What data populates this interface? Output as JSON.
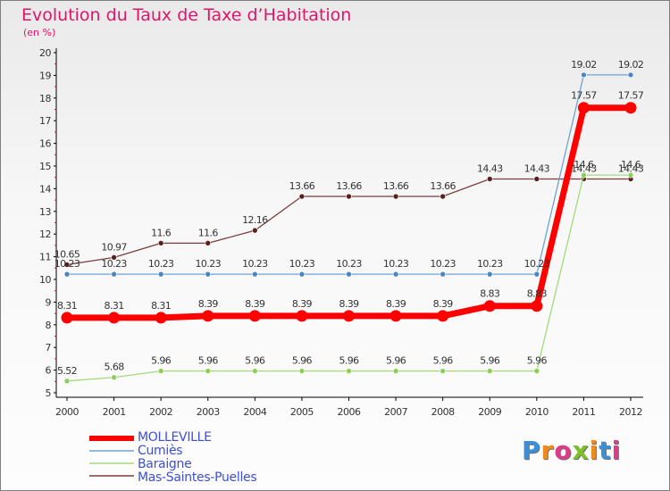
{
  "header": {
    "title": "Evolution du Taux de Taxe d’Habitation",
    "unit": "(en %)"
  },
  "brand": {
    "text": "Proxiti"
  },
  "chart_data": {
    "type": "line",
    "title": "Evolution du Taux de Taxe d’Habitation",
    "ylabel": "(en %)",
    "xlabel": "",
    "x": [
      "2000",
      "2001",
      "2002",
      "2003",
      "2004",
      "2005",
      "2006",
      "2007",
      "2008",
      "2009",
      "2010",
      "2011",
      "2012"
    ],
    "ylim": [
      5,
      20
    ],
    "yticks": [
      "5",
      "6",
      "7",
      "8",
      "9",
      "10",
      "11",
      "12",
      "13",
      "14",
      "15",
      "16",
      "17",
      "18",
      "19",
      "20"
    ],
    "grid": false,
    "legend_position": "bottom-left",
    "series": [
      {
        "name": "MOLLEVILLE",
        "color": "#ff0000",
        "values": [
          8.31,
          8.31,
          8.31,
          8.39,
          8.39,
          8.39,
          8.39,
          8.39,
          8.39,
          8.83,
          8.83,
          17.57,
          17.57
        ],
        "labels": [
          "8.31",
          "8.31",
          "8.31",
          "8.39",
          "8.39",
          "8.39",
          "8.39",
          "8.39",
          "8.39",
          "8.83",
          "8.83",
          "17.57",
          "17.57"
        ]
      },
      {
        "name": "Cumiès",
        "color": "#6fa3cf",
        "values": [
          10.23,
          10.23,
          10.23,
          10.23,
          10.23,
          10.23,
          10.23,
          10.23,
          10.23,
          10.23,
          10.23,
          19.02,
          19.02
        ],
        "labels": [
          "10.23",
          "10.23",
          "10.23",
          "10.23",
          "10.23",
          "10.23",
          "10.23",
          "10.23",
          "10.23",
          "10.23",
          "10.23",
          "19.02",
          "19.02"
        ]
      },
      {
        "name": "Baraigne",
        "color": "#a3da7a",
        "values": [
          5.52,
          5.68,
          5.96,
          5.96,
          5.96,
          5.96,
          5.96,
          5.96,
          5.96,
          5.96,
          5.96,
          14.6,
          14.6
        ],
        "labels": [
          "5.52",
          "5.68",
          "5.96",
          "5.96",
          "5.96",
          "5.96",
          "5.96",
          "5.96",
          "5.96",
          "5.96",
          "5.96",
          "14.6",
          "14.6"
        ]
      },
      {
        "name": "Mas-Saintes-Puelles",
        "color": "#7a3d3d",
        "values": [
          10.65,
          10.97,
          11.6,
          11.6,
          12.16,
          13.66,
          13.66,
          13.66,
          13.66,
          14.43,
          14.43,
          14.43,
          14.43
        ],
        "labels": [
          "10.65",
          "10.97",
          "11.6",
          "11.6",
          "12.16",
          "13.66",
          "13.66",
          "13.66",
          "13.66",
          "14.43",
          "14.43",
          "14.43",
          "14.43"
        ]
      }
    ]
  }
}
